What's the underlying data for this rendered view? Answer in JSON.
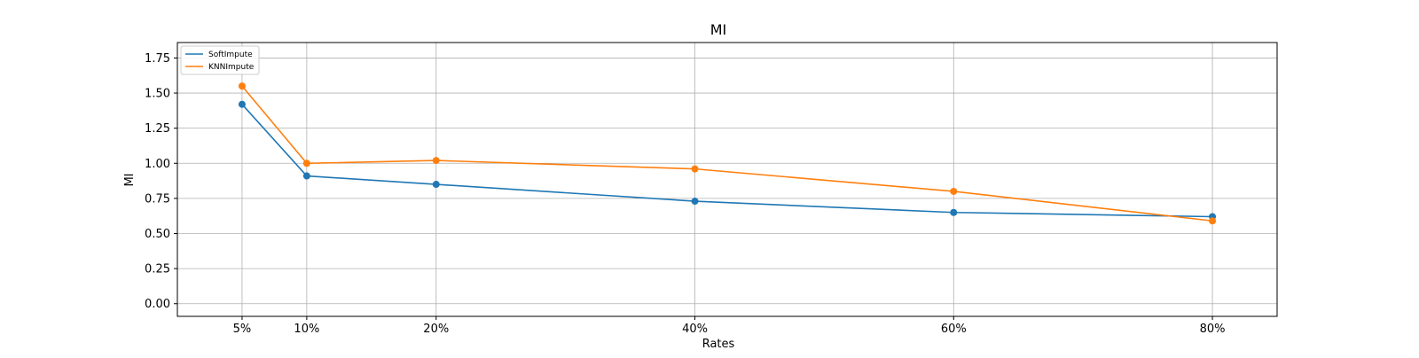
{
  "chart_data": {
    "type": "line",
    "title": "MI",
    "xlabel": "Rates",
    "ylabel": "MI",
    "x": [
      5,
      10,
      20,
      40,
      60,
      80
    ],
    "x_tick_labels": [
      "5%",
      "10%",
      "20%",
      "40%",
      "60%",
      "80%"
    ],
    "xlim": [
      0,
      85
    ],
    "ylim": [
      -0.09,
      1.86
    ],
    "y_ticks": [
      0.0,
      0.25,
      0.5,
      0.75,
      1.0,
      1.25,
      1.5,
      1.75
    ],
    "y_tick_labels": [
      "0.00",
      "0.25",
      "0.50",
      "0.75",
      "1.00",
      "1.25",
      "1.50",
      "1.75"
    ],
    "grid": true,
    "legend_position": "top-left",
    "series": [
      {
        "name": "SoftImpute",
        "color": "#1f77b4",
        "values": [
          1.42,
          0.91,
          0.85,
          0.73,
          0.65,
          0.62
        ]
      },
      {
        "name": "KNNImpute",
        "color": "#ff7f0e",
        "values": [
          1.55,
          1.0,
          1.02,
          0.96,
          0.8,
          0.59
        ]
      }
    ]
  }
}
